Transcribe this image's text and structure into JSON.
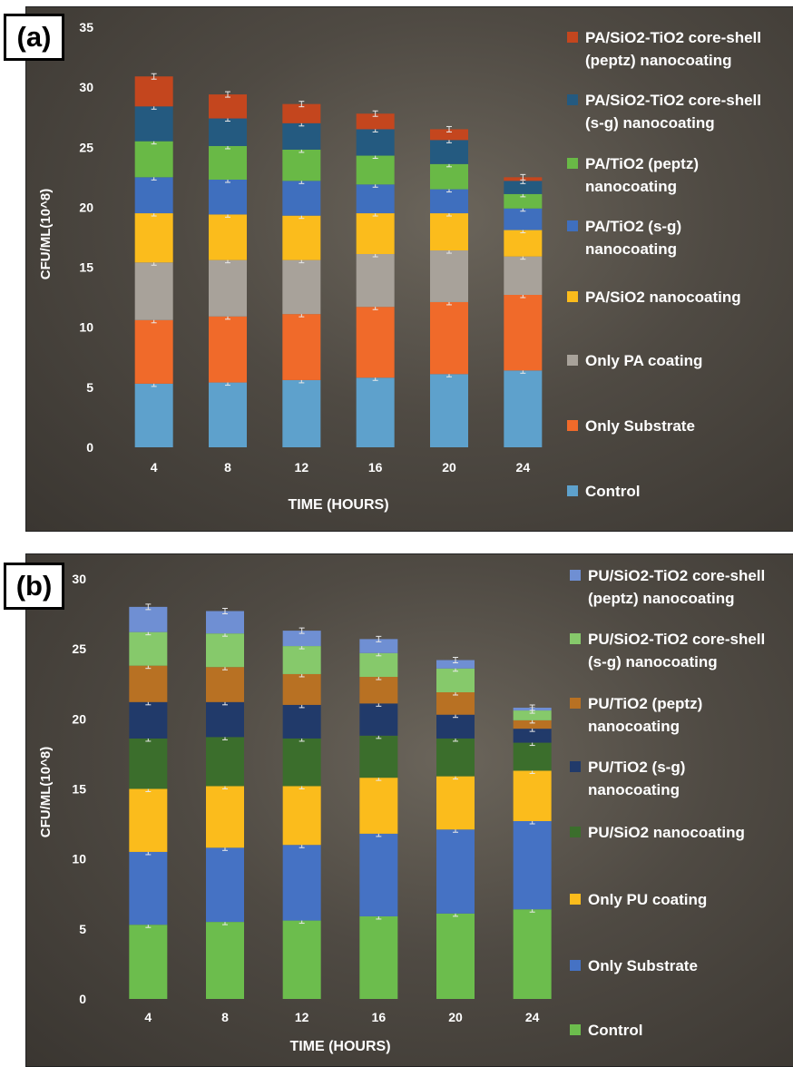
{
  "chart_data": [
    {
      "panel_label": "(a)",
      "type": "bar",
      "stacked": true,
      "xlabel": "TIME (HOURS)",
      "ylabel": "CFU/ML(10^8)",
      "ylim": [
        0,
        35
      ],
      "yticks": [
        0,
        5,
        10,
        15,
        20,
        25,
        30,
        35
      ],
      "categories": [
        "4",
        "8",
        "12",
        "16",
        "20",
        "24"
      ],
      "legend_placement": "right",
      "series": [
        {
          "name": "Control",
          "color": "#5ea1cc",
          "values": [
            5.3,
            5.4,
            5.6,
            5.8,
            6.1,
            6.4
          ]
        },
        {
          "name": "Only Substrate",
          "color": "#f06a2a",
          "values": [
            5.3,
            5.5,
            5.5,
            5.9,
            6.0,
            6.3
          ]
        },
        {
          "name": "Only PA coating",
          "color": "#a8a29a",
          "values": [
            4.8,
            4.7,
            4.5,
            4.4,
            4.3,
            3.2
          ]
        },
        {
          "name": "PA/SiO2 nanocoating",
          "color": "#fbbc1c",
          "values": [
            4.1,
            3.8,
            3.7,
            3.4,
            3.1,
            2.2
          ]
        },
        {
          "name": "PA/TiO2 (s-g) nanocoating",
          "color": "#3f6fbe",
          "values": [
            3.0,
            2.9,
            2.9,
            2.4,
            2.0,
            1.8
          ]
        },
        {
          "name": "PA/TiO2 (peptz) nanocoating",
          "color": "#69b946",
          "values": [
            3.0,
            2.8,
            2.6,
            2.4,
            2.1,
            1.2
          ]
        },
        {
          "name": "PA/SiO2-TiO2 core-shell (s-g) nanocoating",
          "color": "#245a80",
          "values": [
            2.9,
            2.3,
            2.2,
            2.2,
            2.0,
            1.1
          ]
        },
        {
          "name": "PA/SiO2-TiO2 core-shell (peptz) nanocoating",
          "color": "#c4461e",
          "values": [
            2.5,
            2.0,
            1.6,
            1.3,
            0.9,
            0.3
          ]
        }
      ]
    },
    {
      "panel_label": "(b)",
      "type": "bar",
      "stacked": true,
      "xlabel": "TIME (HOURS)",
      "ylabel": "CFU/ML(10^8)",
      "ylim": [
        0,
        30
      ],
      "yticks": [
        0,
        5,
        10,
        15,
        20,
        25,
        30
      ],
      "categories": [
        "4",
        "8",
        "12",
        "16",
        "20",
        "24"
      ],
      "legend_placement": "right",
      "series": [
        {
          "name": "Control",
          "color": "#6cbd4d",
          "values": [
            5.3,
            5.5,
            5.6,
            5.9,
            6.1,
            6.4
          ]
        },
        {
          "name": "Only Substrate",
          "color": "#4572c4",
          "values": [
            5.2,
            5.3,
            5.4,
            5.9,
            6.0,
            6.3
          ]
        },
        {
          "name": "Only PU coating",
          "color": "#fbbc1c",
          "values": [
            4.5,
            4.4,
            4.2,
            4.0,
            3.8,
            3.6
          ]
        },
        {
          "name": "PU/SiO2 nanocoating",
          "color": "#3b6e2c",
          "values": [
            3.6,
            3.5,
            3.4,
            3.0,
            2.7,
            2.0
          ]
        },
        {
          "name": "PU/TiO2 (s-g) nanocoating",
          "color": "#213a6a",
          "values": [
            2.6,
            2.5,
            2.4,
            2.3,
            1.7,
            1.0
          ]
        },
        {
          "name": "PU/TiO2 (peptz) nanocoating",
          "color": "#b87123",
          "values": [
            2.6,
            2.5,
            2.2,
            1.9,
            1.6,
            0.6
          ]
        },
        {
          "name": "PU/SiO2-TiO2 core-shell (s-g) nanocoating",
          "color": "#86c96b",
          "values": [
            2.4,
            2.4,
            2.0,
            1.7,
            1.7,
            0.7
          ]
        },
        {
          "name": "PU/SiO2-TiO2 core-shell (peptz) nanocoating",
          "color": "#6f8fd3",
          "values": [
            1.8,
            1.6,
            1.1,
            1.0,
            0.6,
            0.2
          ]
        }
      ]
    }
  ],
  "legend_lines": [
    [
      [
        "PA/SiO2-TiO2 core-shell",
        "(peptz) nanocoating"
      ],
      [
        "PA/SiO2-TiO2 core-shell",
        "(s-g) nanocoating"
      ],
      [
        "PA/TiO2 (peptz)",
        "nanocoating"
      ],
      [
        "PA/TiO2 (s-g)",
        "nanocoating"
      ],
      [
        "PA/SiO2 nanocoating"
      ],
      [
        "Only PA coating"
      ],
      [
        "Only Substrate"
      ],
      [
        "Control"
      ]
    ],
    [
      [
        "PU/SiO2-TiO2 core-shell",
        "(peptz) nanocoating"
      ],
      [
        "PU/SiO2-TiO2 core-shell",
        "(s-g) nanocoating"
      ],
      [
        "PU/TiO2 (peptz)",
        "nanocoating"
      ],
      [
        "PU/TiO2 (s-g)",
        "nanocoating"
      ],
      [
        "PU/SiO2 nanocoating"
      ],
      [
        "Only PU coating"
      ],
      [
        "Only Substrate"
      ],
      [
        "Control"
      ]
    ]
  ]
}
